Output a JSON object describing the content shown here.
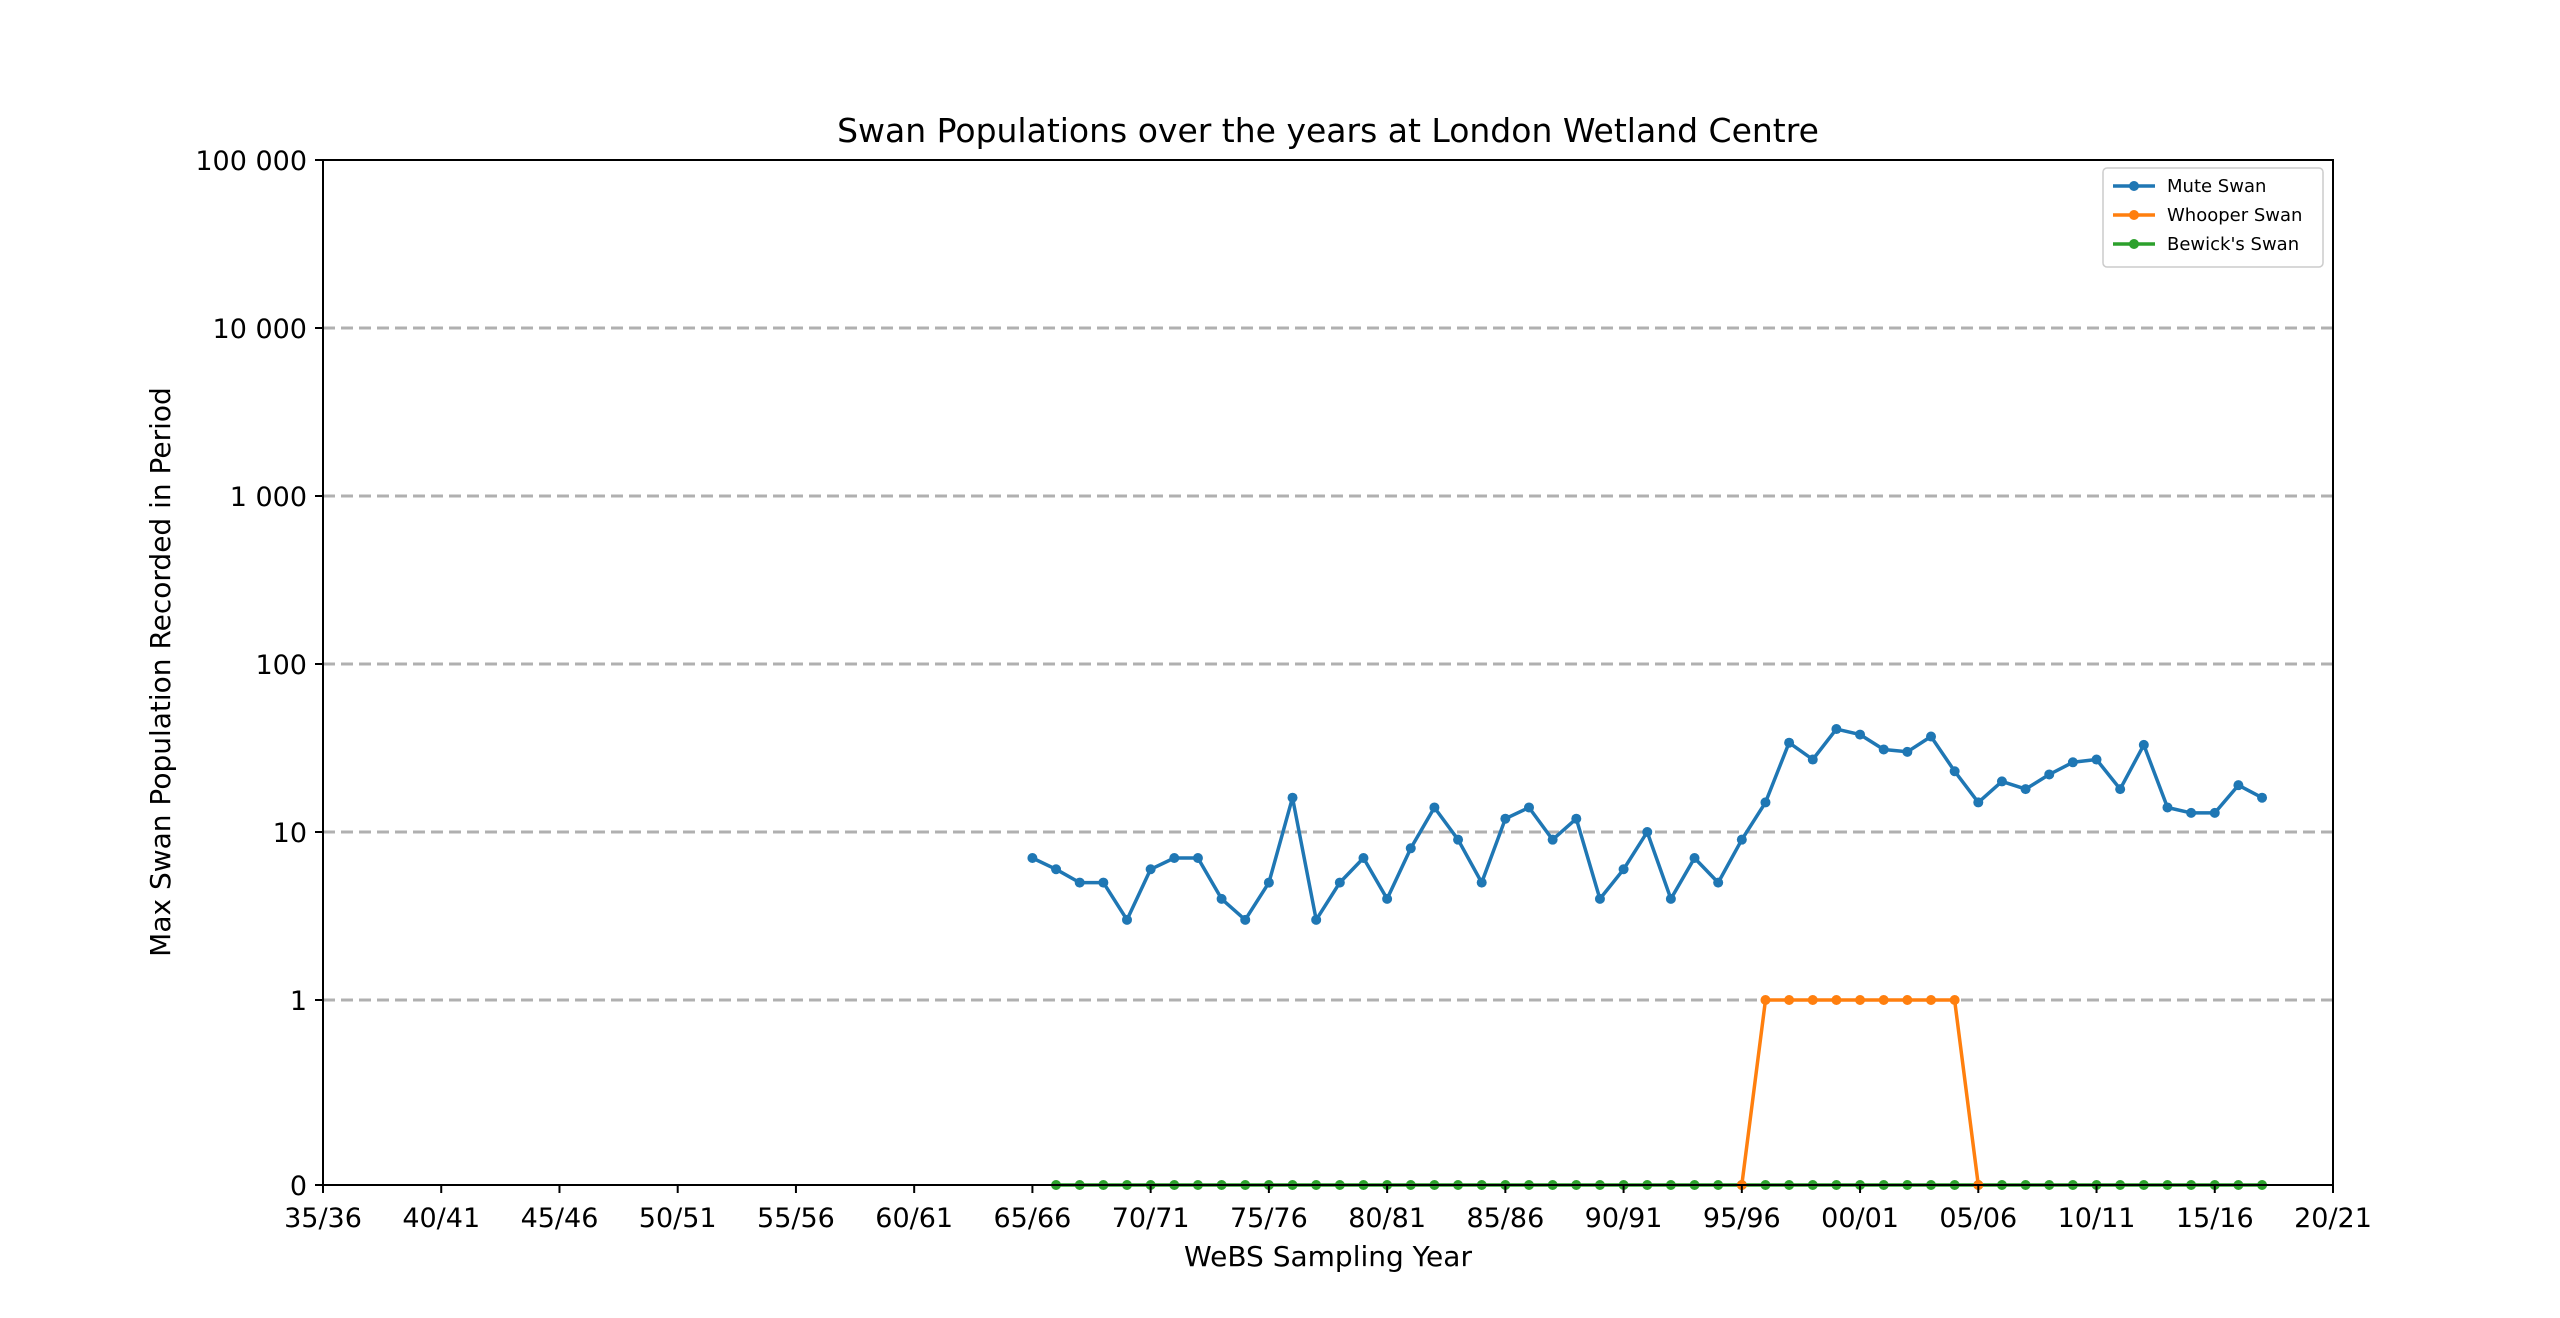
{
  "chart_data": {
    "type": "line",
    "title": "Swan Populations over the years at London Wetland Centre",
    "xlabel": "WeBS Sampling Year",
    "ylabel": "Max Swan Population Recorded in Period",
    "yscale": "symlog",
    "ylim": [
      0,
      100000
    ],
    "xlim": [
      "35/36",
      "20/21"
    ],
    "x_tick_labels": [
      "35/36",
      "40/41",
      "45/46",
      "50/51",
      "55/56",
      "60/61",
      "65/66",
      "70/71",
      "75/76",
      "80/81",
      "85/86",
      "90/91",
      "95/96",
      "00/01",
      "05/06",
      "10/11",
      "15/16",
      "20/21"
    ],
    "y_tick_labels": [
      "0",
      "1",
      "10",
      "100",
      "1 000",
      "10 000",
      "100 000"
    ],
    "y_tick_values": [
      0,
      1,
      10,
      100,
      1000,
      10000,
      100000
    ],
    "grid": "horizontal dashed",
    "legend_position": "top-right",
    "series": [
      {
        "name": "Mute Swan",
        "color": "#1f77b4",
        "x": [
          "65/66",
          "66/67",
          "67/68",
          "68/69",
          "69/70",
          "70/71",
          "71/72",
          "72/73",
          "73/74",
          "74/75",
          "75/76",
          "76/77",
          "77/78",
          "78/79",
          "79/80",
          "80/81",
          "81/82",
          "82/83",
          "83/84",
          "84/85",
          "85/86",
          "86/87",
          "87/88",
          "88/89",
          "89/90",
          "90/91",
          "91/92",
          "92/93",
          "93/94",
          "94/95",
          "95/96",
          "96/97",
          "97/98",
          "98/99",
          "99/00",
          "00/01",
          "01/02",
          "02/03",
          "03/04",
          "04/05",
          "05/06",
          "06/07",
          "07/08",
          "08/09",
          "09/10",
          "10/11",
          "11/12",
          "12/13",
          "13/14",
          "14/15",
          "15/16",
          "16/17",
          "17/18"
        ],
        "values": [
          7,
          6,
          5,
          5,
          3,
          6,
          7,
          7,
          4,
          3,
          5,
          16,
          3,
          5,
          7,
          4,
          8,
          14,
          9,
          5,
          12,
          14,
          9,
          12,
          4,
          6,
          10,
          4,
          7,
          5,
          9,
          15,
          34,
          27,
          41,
          38,
          31,
          30,
          37,
          23,
          15,
          20,
          18,
          22,
          26,
          27,
          18,
          33,
          14,
          13,
          13,
          19,
          16
        ]
      },
      {
        "name": "Whooper Swan",
        "color": "#ff7f0e",
        "x": [
          "95/96",
          "96/97",
          "97/98",
          "98/99",
          "99/00",
          "00/01",
          "01/02",
          "02/03",
          "03/04",
          "04/05",
          "05/06"
        ],
        "values": [
          0,
          1,
          1,
          1,
          1,
          1,
          1,
          1,
          1,
          1,
          0
        ]
      },
      {
        "name": "Bewick's Swan",
        "color": "#2ca02c",
        "x": [
          "66/67",
          "67/68",
          "68/69",
          "69/70",
          "70/71",
          "71/72",
          "72/73",
          "73/74",
          "74/75",
          "75/76",
          "76/77",
          "77/78",
          "78/79",
          "79/80",
          "80/81",
          "81/82",
          "82/83",
          "83/84",
          "84/85",
          "85/86",
          "86/87",
          "87/88",
          "88/89",
          "89/90",
          "90/91",
          "91/92",
          "92/93",
          "93/94",
          "94/95",
          "95/96",
          "96/97",
          "97/98",
          "98/99",
          "99/00",
          "00/01",
          "01/02",
          "02/03",
          "03/04",
          "04/05",
          "05/06",
          "06/07",
          "07/08",
          "08/09",
          "09/10",
          "10/11",
          "11/12",
          "12/13",
          "13/14",
          "14/15",
          "15/16",
          "16/17",
          "17/18"
        ],
        "values": [
          0,
          0,
          0,
          0,
          0,
          0,
          0,
          0,
          0,
          0,
          0,
          0,
          0,
          0,
          0,
          0,
          0,
          0,
          0,
          0,
          0,
          0,
          0,
          0,
          0,
          0,
          0,
          0,
          0,
          0,
          0,
          0,
          0,
          0,
          0,
          0,
          0,
          0,
          0,
          0,
          0,
          0,
          0,
          0,
          0,
          0,
          0,
          0,
          0,
          0,
          0,
          0
        ]
      }
    ]
  }
}
